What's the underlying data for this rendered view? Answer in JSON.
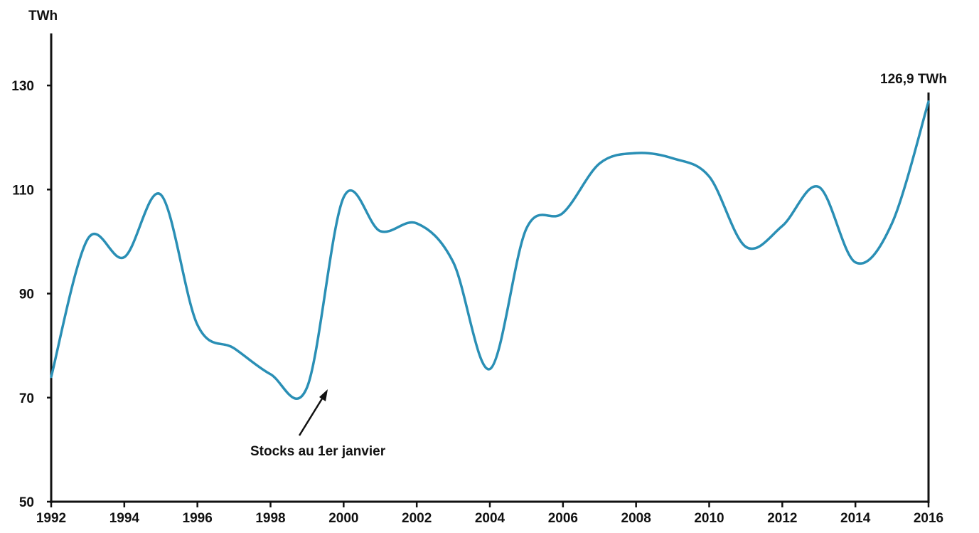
{
  "chart_data": {
    "type": "line",
    "title": "",
    "xlabel": "",
    "ylabel": "TWh",
    "x": [
      1992,
      1993,
      1994,
      1995,
      1996,
      1997,
      1998,
      1999,
      2000,
      2001,
      2002,
      2003,
      2004,
      2005,
      2006,
      2007,
      2008,
      2009,
      2010,
      2011,
      2012,
      2013,
      2014,
      2015,
      2016
    ],
    "series": [
      {
        "color": "#2a8fb5",
        "values": [
          74,
          100.5,
          97,
          109,
          84,
          79.5,
          74.5,
          72,
          108.5,
          102,
          103.5,
          96,
          75.5,
          102.5,
          105.5,
          115,
          117,
          116,
          112.5,
          99,
          103,
          110.5,
          96,
          103.5,
          126.9
        ]
      }
    ],
    "xlim": [
      1992,
      2016
    ],
    "ylim": [
      50,
      140
    ],
    "xticks": [
      "1992",
      "1994",
      "1996",
      "1998",
      "2000",
      "2002",
      "2004",
      "2006",
      "2008",
      "2010",
      "2012",
      "2014",
      "2016"
    ],
    "yticks": [
      "50",
      "70",
      "90",
      "110",
      "130"
    ],
    "grid": false,
    "annotations": {
      "end_value": "126,9 TWh",
      "arrow_note": "Stocks au 1er janvier"
    }
  }
}
